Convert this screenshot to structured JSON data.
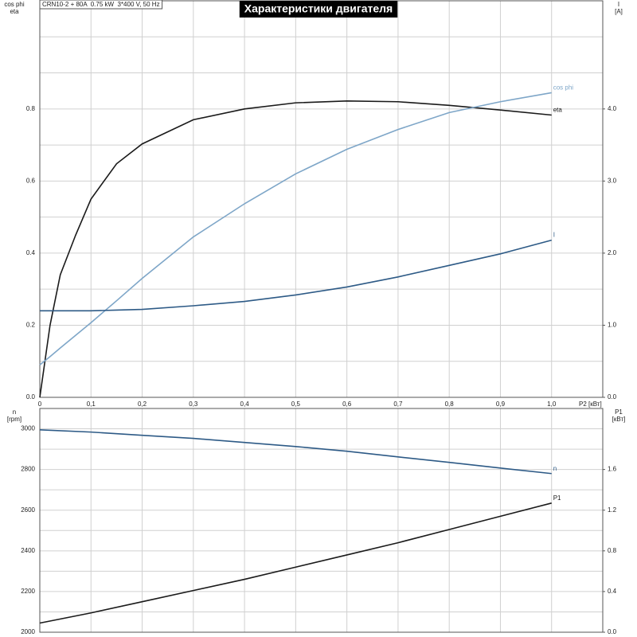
{
  "chart_data": [
    {
      "type": "line",
      "title": "Характеристики двигателя",
      "subtitle": "CRN10-2 + 80A  0.75 kW  3*400 V, 50 Hz",
      "xlabel": "P2 [кВт]",
      "ylabel": [
        "cos phi",
        "eta"
      ],
      "y2label": [
        "I",
        "[A]"
      ],
      "x": [
        0,
        0.02,
        0.04,
        0.07,
        0.1,
        0.15,
        0.2,
        0.3,
        0.4,
        0.5,
        0.6,
        0.7,
        0.8,
        0.9,
        1.0
      ],
      "xlim": [
        0,
        1.1
      ],
      "xticks": [
        0,
        {
          "value": 0.1,
          "label": "0,1"
        },
        {
          "value": 0.2,
          "label": "0,2"
        },
        {
          "value": 0.3,
          "label": "0,3"
        },
        {
          "value": 0.4,
          "label": "0,4"
        },
        {
          "value": 0.5,
          "label": "0,5"
        },
        {
          "value": 0.6,
          "label": "0,6"
        },
        {
          "value": 0.7,
          "label": "0,7"
        },
        {
          "value": 0.8,
          "label": "0,8"
        },
        {
          "value": 0.9,
          "label": "0,9"
        },
        {
          "value": 1.0,
          "label": "1,0"
        }
      ],
      "show_xtick_labels": true,
      "ylim": [
        0,
        1.1
      ],
      "yticks": [
        {
          "value": 0,
          "label": "0.0"
        },
        0.2,
        0.4,
        0.6,
        0.8
      ],
      "minor_yticks": [
        0.1,
        0.3,
        0.5,
        0.7,
        0.9,
        1.0
      ],
      "y2lim": [
        0,
        5.5
      ],
      "y2ticks": [
        {
          "value": 0,
          "label": "0.0"
        },
        {
          "value": 1,
          "label": "1.0"
        },
        {
          "value": 2,
          "label": "2.0"
        },
        {
          "value": 3,
          "label": "3.0"
        },
        {
          "value": 4,
          "label": "4.0"
        }
      ],
      "grid": true,
      "series": [
        {
          "name": "eta",
          "color": "#1a1a1a",
          "values": [
            0,
            0.2,
            0.34,
            0.45,
            0.55,
            0.648,
            0.703,
            0.77,
            0.8,
            0.817,
            0.822,
            0.82,
            0.81,
            0.797,
            0.783
          ]
        },
        {
          "name": "cos phi",
          "color": "#7ea6c8",
          "values": [
            0.09,
            0.113,
            0.137,
            0.172,
            0.207,
            0.268,
            0.33,
            0.445,
            0.537,
            0.62,
            0.688,
            0.743,
            0.79,
            0.82,
            0.845
          ]
        },
        {
          "name": "I",
          "color": "#2d5a86",
          "axis": "y2",
          "values": [
            1.2,
            1.2,
            1.2,
            1.2,
            1.2,
            1.21,
            1.22,
            1.27,
            1.33,
            1.42,
            1.53,
            1.67,
            1.83,
            1.99,
            2.18
          ]
        }
      ]
    },
    {
      "type": "line",
      "ylabel": [
        "n",
        "[rpm]"
      ],
      "y2label": [
        "P1",
        "[кВт]"
      ],
      "x": [
        0,
        0.1,
        0.2,
        0.3,
        0.4,
        0.5,
        0.6,
        0.7,
        0.8,
        0.9,
        1.0
      ],
      "xlim": [
        0,
        1.1
      ],
      "xticks": [
        0,
        0.1,
        0.2,
        0.3,
        0.4,
        0.5,
        0.6,
        0.7,
        0.8,
        0.9,
        1.0
      ],
      "show_xtick_labels": false,
      "ylim": [
        2000,
        3100
      ],
      "yticks": [
        2000,
        2200,
        2400,
        2600,
        2800,
        3000
      ],
      "minor_yticks": [
        2100,
        2300,
        2500,
        2700,
        2900
      ],
      "y2lim": [
        0,
        2.2
      ],
      "y2ticks": [
        {
          "value": 0,
          "label": "0.0"
        },
        0.4,
        0.8,
        1.2,
        1.6
      ],
      "grid": true,
      "series": [
        {
          "name": "n",
          "color": "#2d5a86",
          "values": [
            2995,
            2984,
            2968,
            2953,
            2933,
            2913,
            2890,
            2862,
            2835,
            2807,
            2780
          ]
        },
        {
          "name": "P1",
          "color": "#1a1a1a",
          "axis": "y2",
          "values": [
            0.09,
            0.19,
            0.3,
            0.41,
            0.52,
            0.64,
            0.76,
            0.88,
            1.01,
            1.14,
            1.27
          ]
        }
      ]
    }
  ]
}
